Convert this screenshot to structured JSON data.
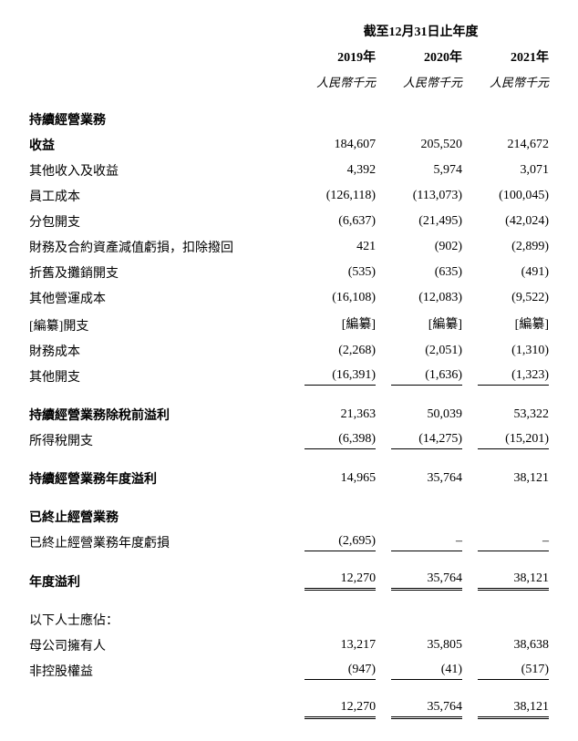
{
  "period_heading": "截至12月31日止年度",
  "years": {
    "y2019": "2019年",
    "y2020": "2020年",
    "y2021": "2021年"
  },
  "unit": "人民幣千元",
  "sections": {
    "continuing_heading": "持續經營業務",
    "profit_before_tax_label": "持續經營業務除稅前溢利",
    "profit_year_label": "持續經營業務年度溢利",
    "discontinued_heading": "已終止經營業務",
    "year_profit_label": "年度溢利",
    "attributable_heading": "以下人士應佔："
  },
  "rows": {
    "revenue": {
      "label": "收益",
      "v2019": "184,607",
      "v2020": "205,520",
      "v2021": "214,672"
    },
    "other_income": {
      "label": "其他收入及收益",
      "v2019": "4,392",
      "v2020": "5,974",
      "v2021": "3,071"
    },
    "staff_cost": {
      "label": "員工成本",
      "v2019": "(126,118)",
      "v2020": "(113,073)",
      "v2021": "(100,045)"
    },
    "subcontracting": {
      "label": "分包開支",
      "v2019": "(6,637)",
      "v2020": "(21,495)",
      "v2021": "(42,024)"
    },
    "impairment": {
      "label": "財務及合約資產減值虧損，扣除撥回",
      "v2019": "421",
      "v2020": "(902)",
      "v2021": "(2,899)"
    },
    "depreciation": {
      "label": "折舊及攤銷開支",
      "v2019": "(535)",
      "v2020": "(635)",
      "v2021": "(491)"
    },
    "other_operating": {
      "label": "其他營運成本",
      "v2019": "(16,108)",
      "v2020": "(12,083)",
      "v2021": "(9,522)"
    },
    "redacted": {
      "label": "[編纂]開支",
      "v2019": "[編纂]",
      "v2020": "[編纂]",
      "v2021": "[編纂]"
    },
    "finance_cost": {
      "label": "財務成本",
      "v2019": "(2,268)",
      "v2020": "(2,051)",
      "v2021": "(1,310)"
    },
    "other_expenses": {
      "label": "其他開支",
      "v2019": "(16,391)",
      "v2020": "(1,636)",
      "v2021": "(1,323)"
    },
    "profit_before_tax": {
      "v2019": "21,363",
      "v2020": "50,039",
      "v2021": "53,322"
    },
    "income_tax": {
      "label": "所得稅開支",
      "v2019": "(6,398)",
      "v2020": "(14,275)",
      "v2021": "(15,201)"
    },
    "continuing_profit": {
      "v2019": "14,965",
      "v2020": "35,764",
      "v2021": "38,121"
    },
    "discontinued_loss": {
      "label": "已終止經營業務年度虧損",
      "v2019": "(2,695)",
      "v2020": "–",
      "v2021": "–"
    },
    "year_profit": {
      "v2019": "12,270",
      "v2020": "35,764",
      "v2021": "38,121"
    },
    "parent_owners": {
      "label": "母公司擁有人",
      "v2019": "13,217",
      "v2020": "35,805",
      "v2021": "38,638"
    },
    "nci": {
      "label": "非控股權益",
      "v2019": "(947)",
      "v2020": "(41)",
      "v2021": "(517)"
    },
    "total_attrib": {
      "v2019": "12,270",
      "v2020": "35,764",
      "v2021": "38,121"
    }
  }
}
